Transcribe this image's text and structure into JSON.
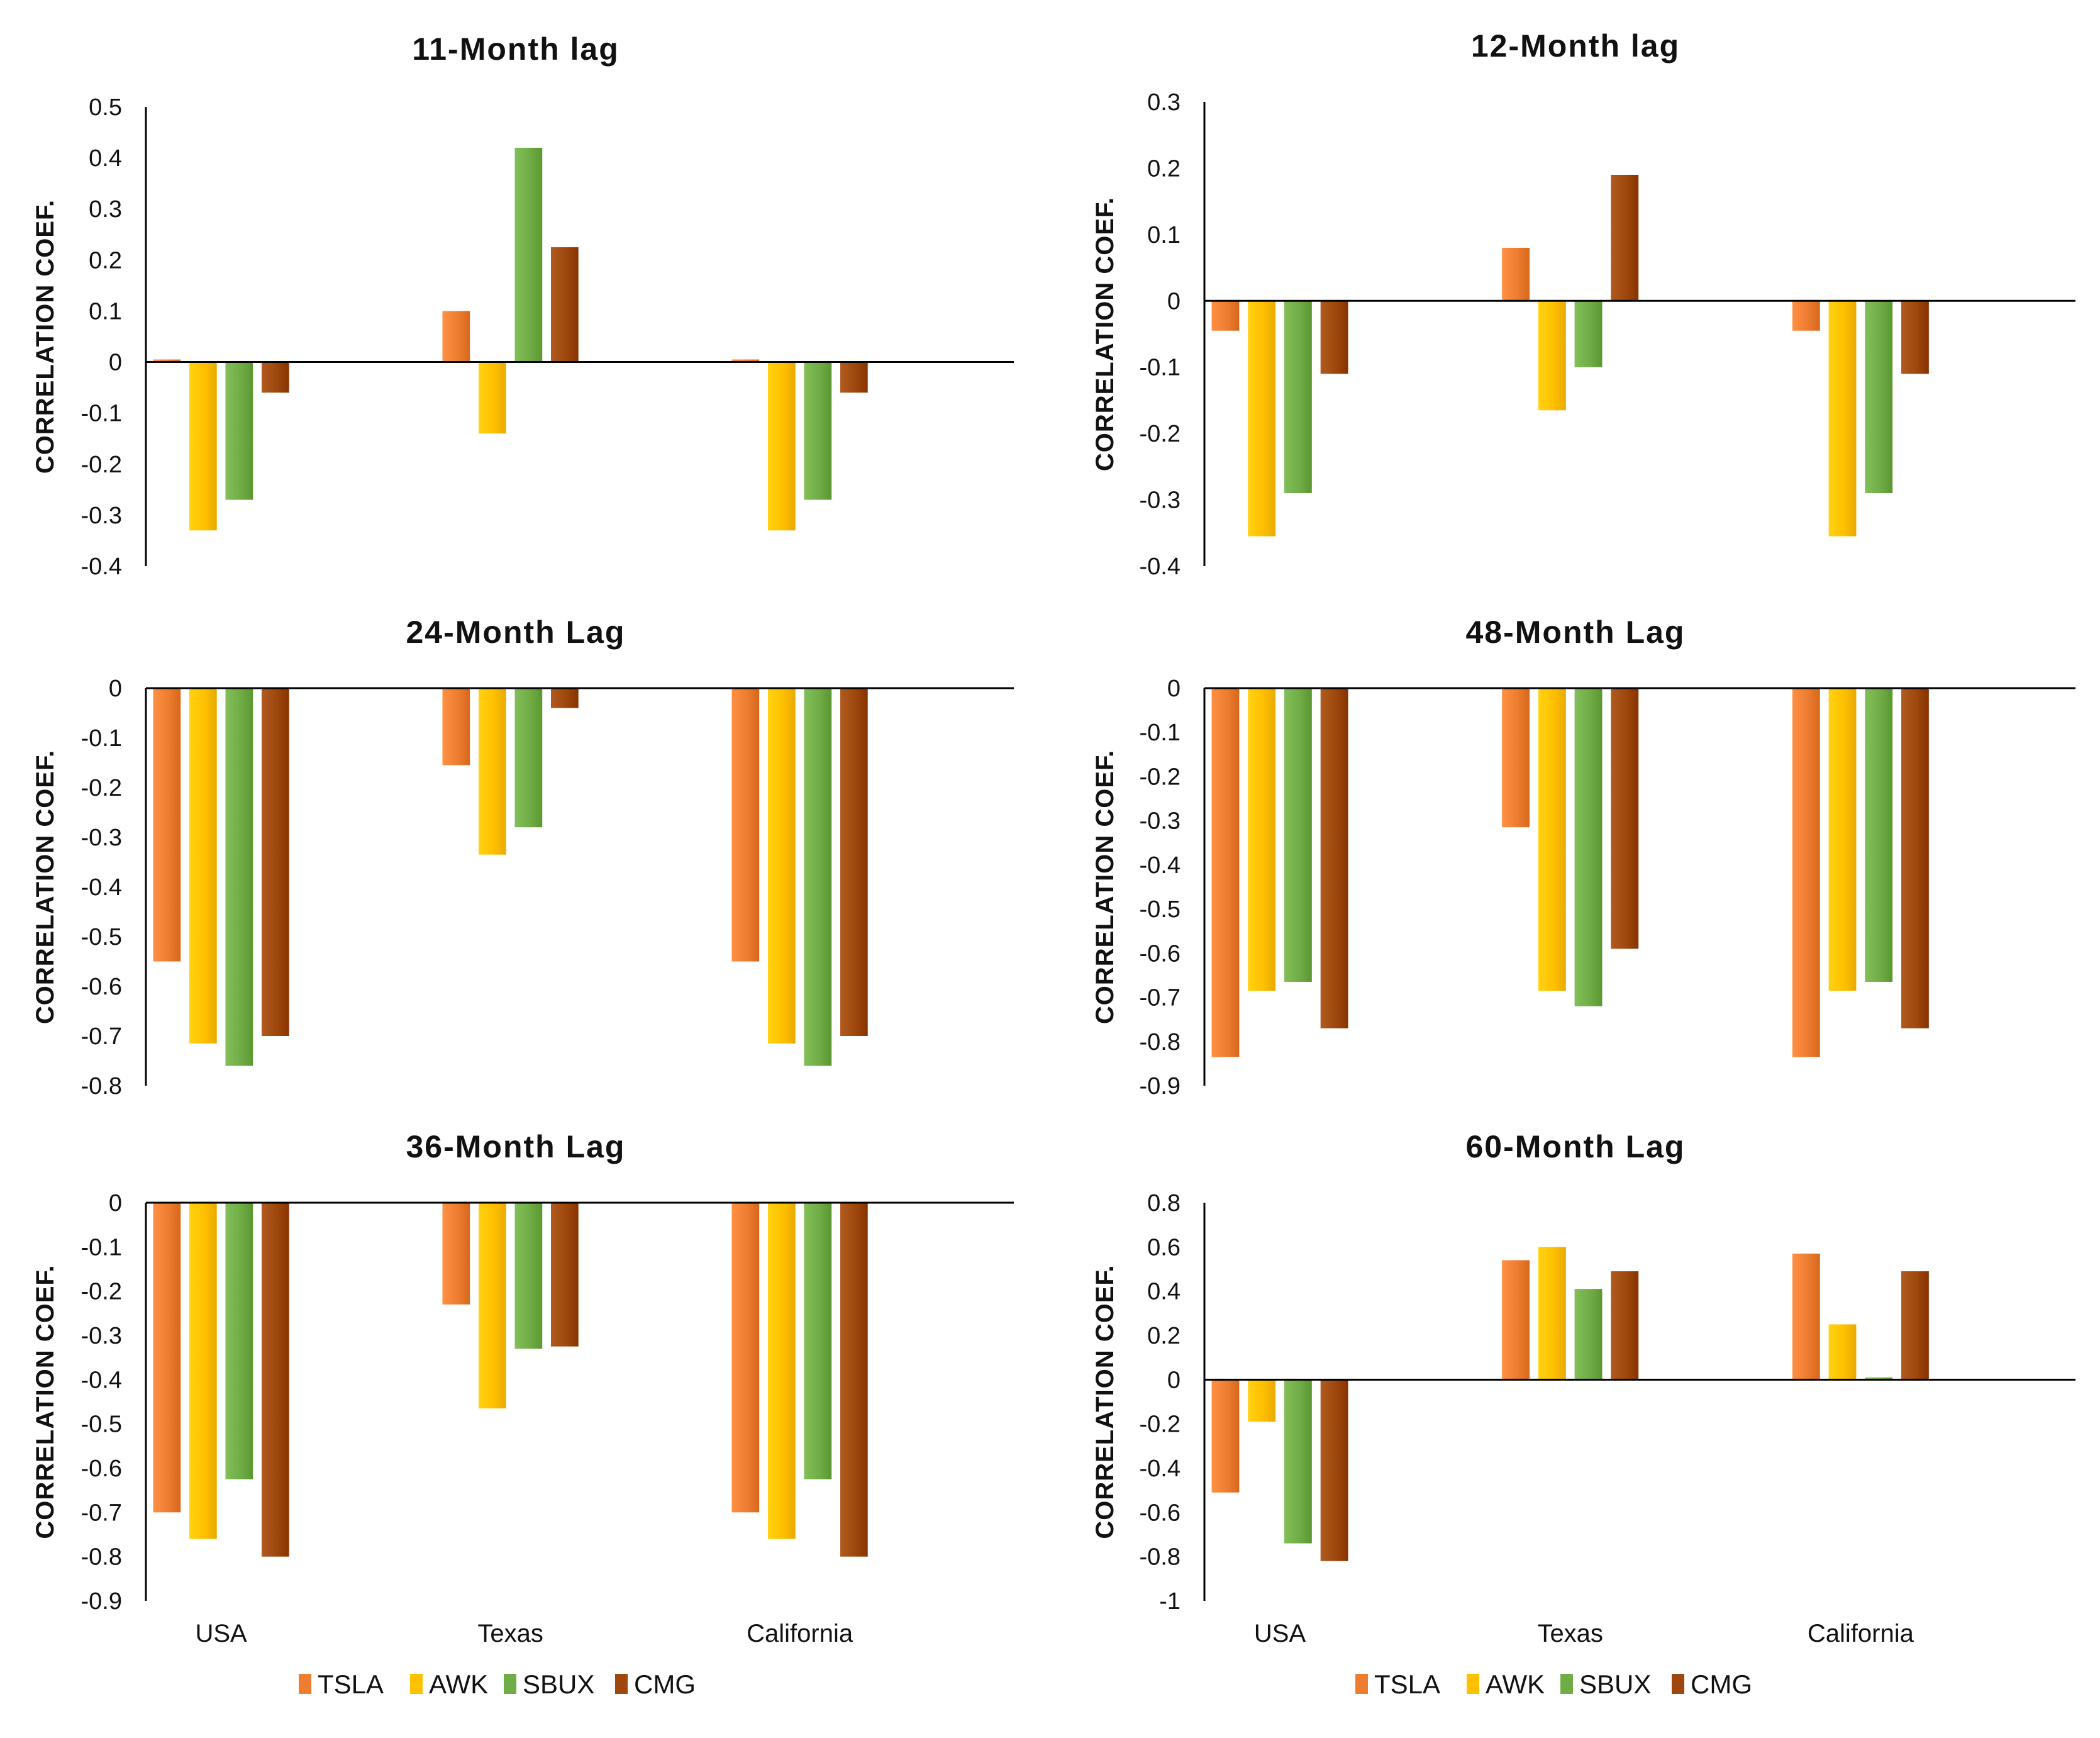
{
  "colors": {
    "TSLA": "#ED7D31",
    "AWK": "#FFC000",
    "SBUX": "#70AD47",
    "CMG": "#9E480E",
    "axis": "#000000"
  },
  "legend_groups": [
    {
      "items": [
        {
          "label": "TSLA",
          "color": "#ED7D31"
        },
        {
          "label": "AWK",
          "color": "#FFC000"
        },
        {
          "label": "SBUX",
          "color": "#70AD47"
        },
        {
          "label": "CMG",
          "color": "#9E480E"
        }
      ]
    },
    {
      "items": [
        {
          "label": "TSLA",
          "color": "#ED7D31"
        },
        {
          "label": "AWK",
          "color": "#FFC000"
        },
        {
          "label": "SBUX",
          "color": "#70AD47"
        },
        {
          "label": "CMG",
          "color": "#9E480E"
        }
      ]
    }
  ],
  "chart_data": [
    {
      "type": "bar",
      "title": "11-Month lag",
      "ylabel": "CORRELATION COEF.",
      "xlabel": "",
      "categories": [
        "USA",
        "Texas",
        "California"
      ],
      "show_category_labels": false,
      "ylim": [
        -0.4,
        0.5
      ],
      "yticks": [
        0.5,
        0.4,
        0.3,
        0.2,
        0.1,
        0,
        -0.1,
        -0.2,
        -0.3,
        -0.4
      ],
      "series": [
        {
          "name": "TSLA",
          "values": [
            0.005,
            0.1,
            0.005
          ]
        },
        {
          "name": "AWK",
          "values": [
            -0.33,
            -0.14,
            -0.33
          ]
        },
        {
          "name": "SBUX",
          "values": [
            -0.27,
            0.42,
            -0.27
          ]
        },
        {
          "name": "CMG",
          "values": [
            -0.06,
            0.225,
            -0.06
          ]
        }
      ]
    },
    {
      "type": "bar",
      "title": "12-Month lag",
      "ylabel": "CORRELATION COEF.",
      "xlabel": "",
      "categories": [
        "USA",
        "Texas",
        "California"
      ],
      "show_category_labels": false,
      "ylim": [
        -0.4,
        0.3
      ],
      "yticks": [
        0.3,
        0.2,
        0.1,
        0,
        -0.1,
        -0.2,
        -0.3,
        -0.4
      ],
      "series": [
        {
          "name": "TSLA",
          "values": [
            -0.045,
            0.08,
            -0.045
          ]
        },
        {
          "name": "AWK",
          "values": [
            -0.355,
            -0.165,
            -0.355
          ]
        },
        {
          "name": "SBUX",
          "values": [
            -0.29,
            -0.1,
            -0.29
          ]
        },
        {
          "name": "CMG",
          "values": [
            -0.11,
            0.19,
            -0.11
          ]
        }
      ]
    },
    {
      "type": "bar",
      "title": "24-Month Lag",
      "ylabel": "CORRELATION COEF.",
      "xlabel": "",
      "categories": [
        "USA",
        "Texas",
        "California"
      ],
      "show_category_labels": false,
      "ylim": [
        -0.8,
        0
      ],
      "yticks": [
        0,
        -0.1,
        -0.2,
        -0.3,
        -0.4,
        -0.5,
        -0.6,
        -0.7,
        -0.8
      ],
      "series": [
        {
          "name": "TSLA",
          "values": [
            -0.55,
            -0.155,
            -0.55
          ]
        },
        {
          "name": "AWK",
          "values": [
            -0.715,
            -0.335,
            -0.715
          ]
        },
        {
          "name": "SBUX",
          "values": [
            -0.76,
            -0.28,
            -0.76
          ]
        },
        {
          "name": "CMG",
          "values": [
            -0.7,
            -0.04,
            -0.7
          ]
        }
      ]
    },
    {
      "type": "bar",
      "title": "48-Month Lag",
      "ylabel": "CORRELATION COEF.",
      "xlabel": "",
      "categories": [
        "USA",
        "Texas",
        "California"
      ],
      "show_category_labels": false,
      "ylim": [
        -0.9,
        0
      ],
      "yticks": [
        0,
        -0.1,
        -0.2,
        -0.3,
        -0.4,
        -0.5,
        -0.6,
        -0.7,
        -0.8,
        -0.9
      ],
      "series": [
        {
          "name": "TSLA",
          "values": [
            -0.835,
            -0.315,
            -0.835
          ]
        },
        {
          "name": "AWK",
          "values": [
            -0.685,
            -0.685,
            -0.685
          ]
        },
        {
          "name": "SBUX",
          "values": [
            -0.665,
            -0.72,
            -0.665
          ]
        },
        {
          "name": "CMG",
          "values": [
            -0.77,
            -0.59,
            -0.77
          ]
        }
      ]
    },
    {
      "type": "bar",
      "title": "36-Month Lag",
      "ylabel": "CORRELATION COEF.",
      "xlabel": "",
      "categories": [
        "USA",
        "Texas",
        "California"
      ],
      "show_category_labels": true,
      "ylim": [
        -0.9,
        0
      ],
      "yticks": [
        0,
        -0.1,
        -0.2,
        -0.3,
        -0.4,
        -0.5,
        -0.6,
        -0.7,
        -0.8,
        -0.9
      ],
      "series": [
        {
          "name": "TSLA",
          "values": [
            -0.7,
            -0.23,
            -0.7
          ]
        },
        {
          "name": "AWK",
          "values": [
            -0.76,
            -0.465,
            -0.76
          ]
        },
        {
          "name": "SBUX",
          "values": [
            -0.625,
            -0.33,
            -0.625
          ]
        },
        {
          "name": "CMG",
          "values": [
            -0.8,
            -0.325,
            -0.8
          ]
        }
      ]
    },
    {
      "type": "bar",
      "title": "60-Month Lag",
      "ylabel": "CORRELATION COEF.",
      "xlabel": "",
      "categories": [
        "USA",
        "Texas",
        "California"
      ],
      "show_category_labels": true,
      "ylim": [
        -1,
        0.8
      ],
      "yticks": [
        0.8,
        0.6,
        0.4,
        0.2,
        0,
        -0.2,
        -0.4,
        -0.6,
        -0.8,
        -1
      ],
      "series": [
        {
          "name": "TSLA",
          "values": [
            -0.51,
            0.54,
            0.57
          ]
        },
        {
          "name": "AWK",
          "values": [
            -0.19,
            0.6,
            0.25
          ]
        },
        {
          "name": "SBUX",
          "values": [
            -0.74,
            0.41,
            0.01
          ]
        },
        {
          "name": "CMG",
          "values": [
            -0.82,
            0.49,
            0.49
          ]
        }
      ]
    }
  ]
}
